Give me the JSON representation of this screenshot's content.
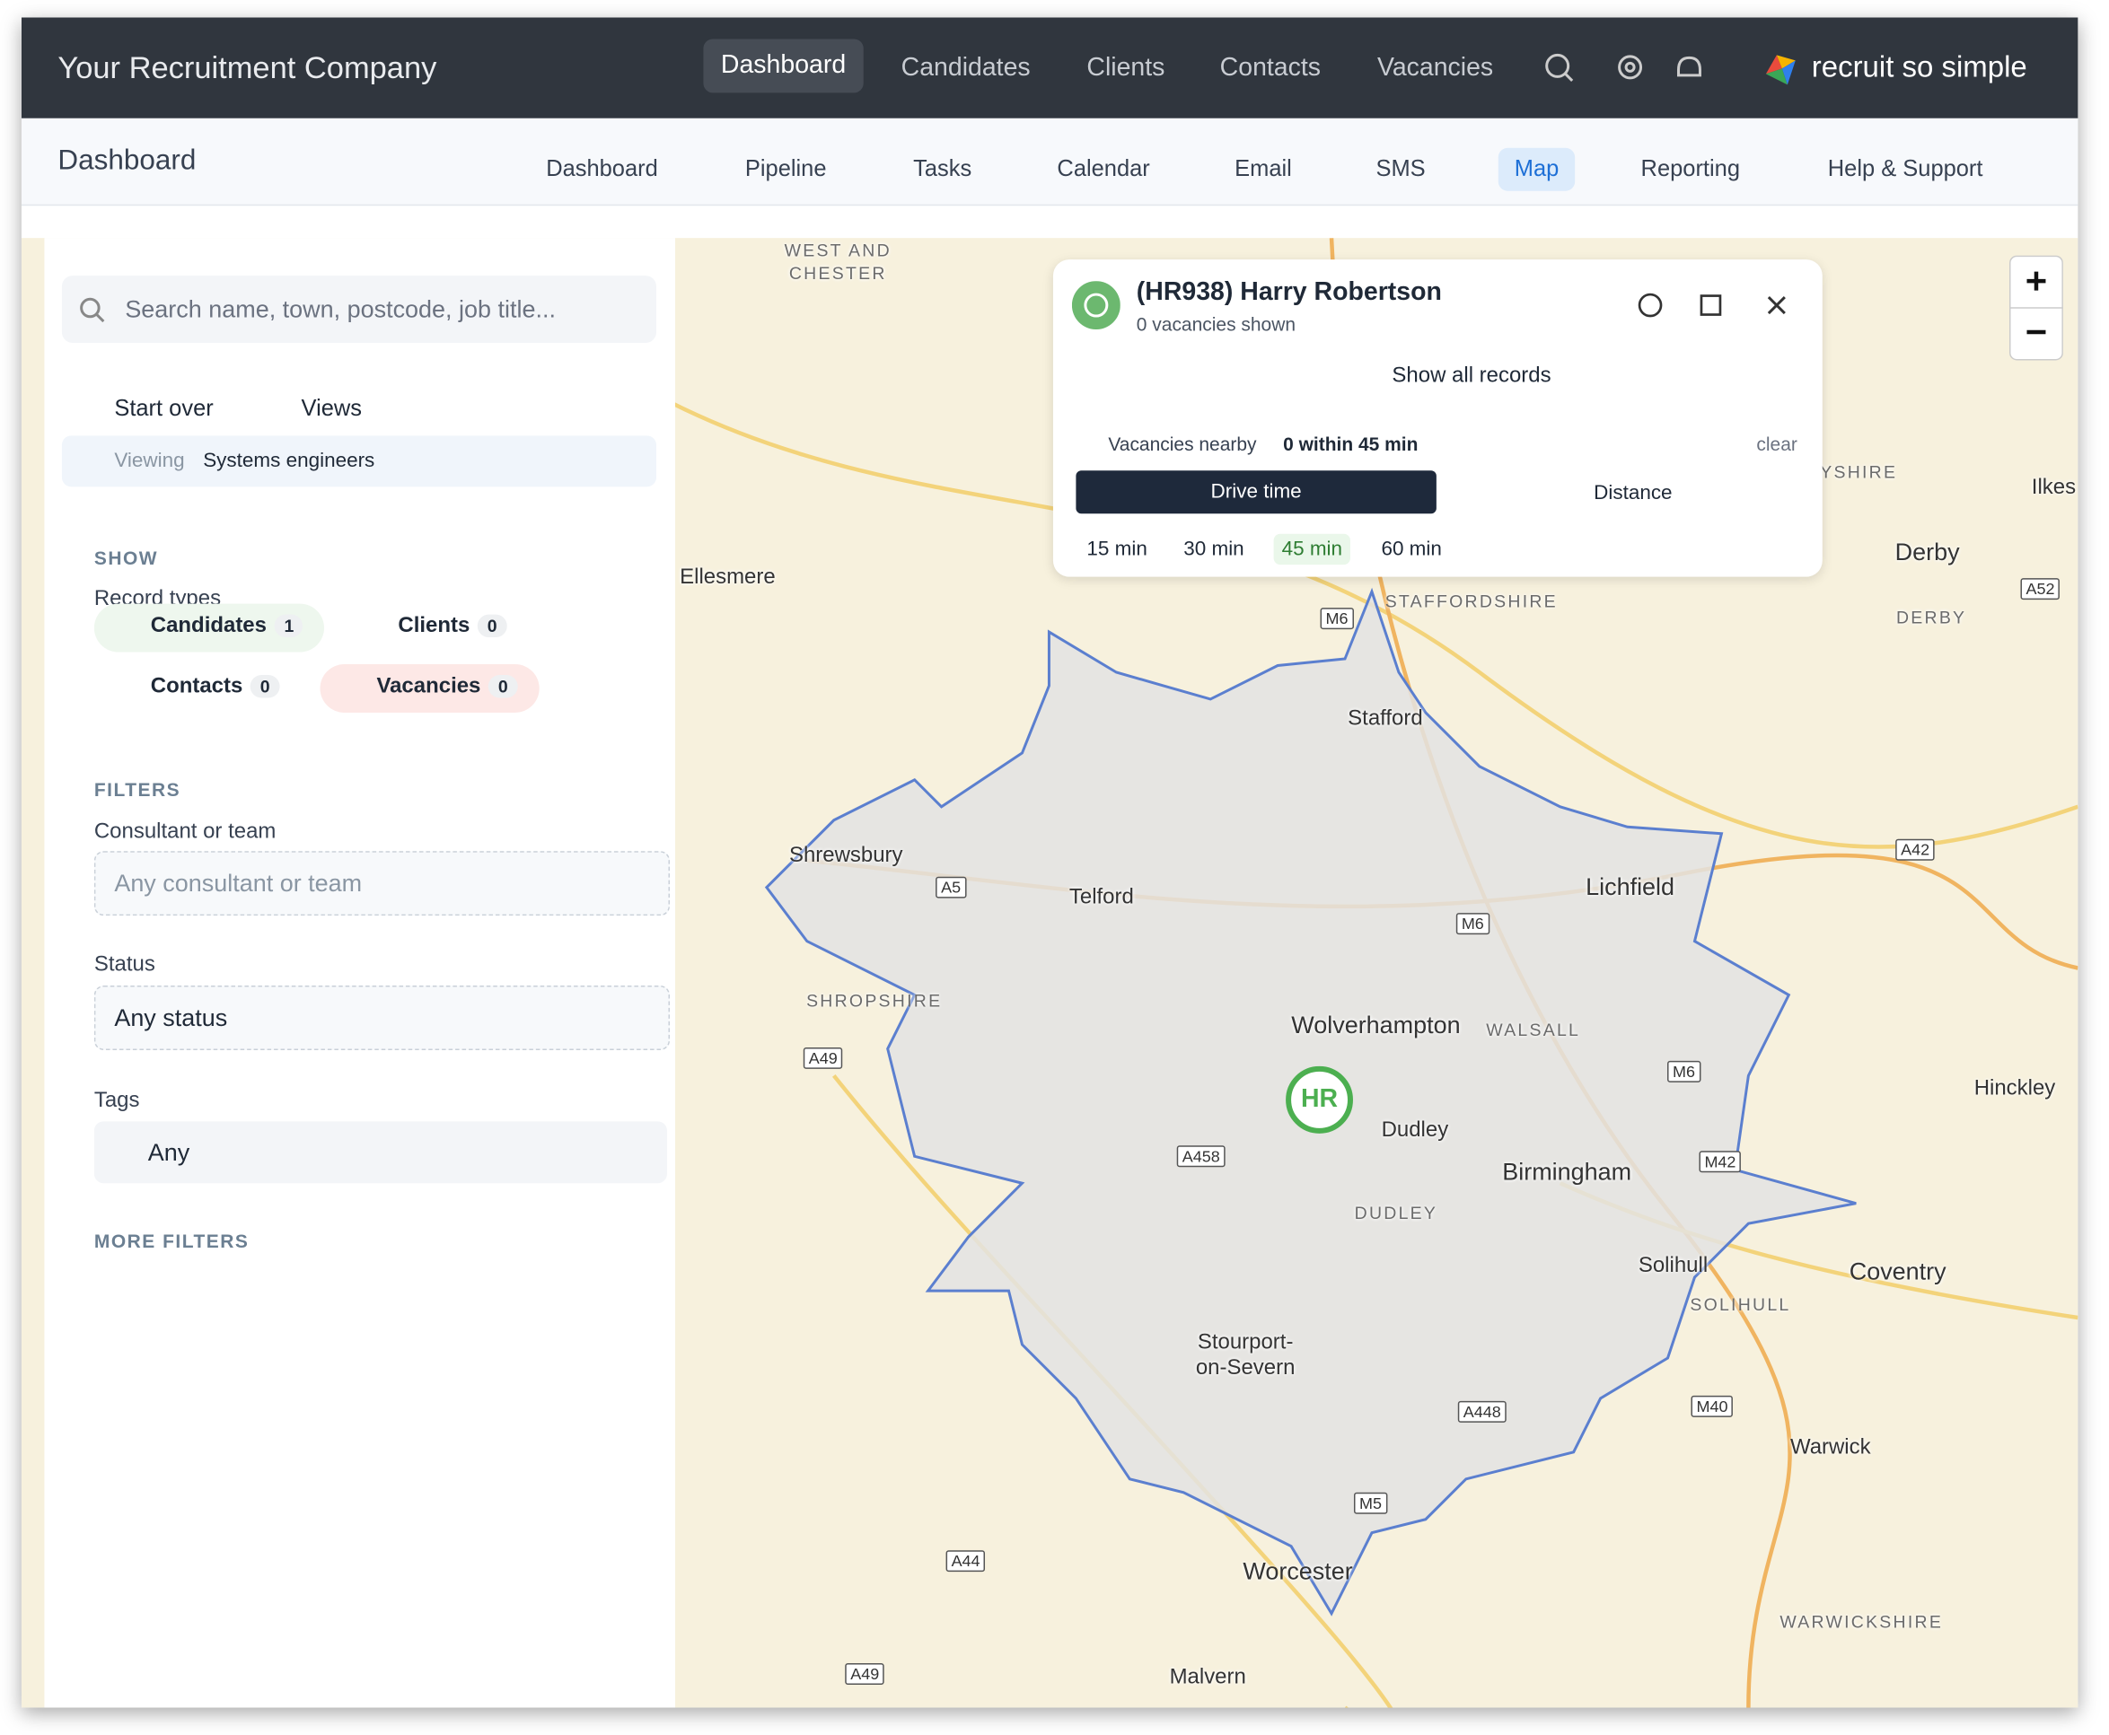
{
  "header": {
    "company": "Your Recruitment Company",
    "nav": [
      "Dashboard",
      "Candidates",
      "Clients",
      "Contacts",
      "Vacancies"
    ],
    "brand": "recruit so simple"
  },
  "subnav": {
    "title": "Dashboard",
    "items": [
      "Dashboard",
      "Pipeline",
      "Tasks",
      "Calendar",
      "Email",
      "SMS",
      "Map",
      "Reporting",
      "Help & Support"
    ]
  },
  "sidebar": {
    "search": "Search name, town, postcode, job title...",
    "start_over": "Start over",
    "views": "Views",
    "viewing_label": "Viewing",
    "viewing_value": "Systems engineers",
    "show_heading": "SHOW",
    "record_types_label": "Record types",
    "record_types": [
      {
        "name": "Candidates",
        "count": 1
      },
      {
        "name": "Clients",
        "count": 0
      },
      {
        "name": "Contacts",
        "count": 0
      },
      {
        "name": "Vacancies",
        "count": 0
      }
    ],
    "filters_heading": "FILTERS",
    "consultant_label": "Consultant or team",
    "consultant_value": "Any consultant or team",
    "status_label": "Status",
    "status_value": "Any status",
    "tags_label": "Tags",
    "tags_value": "Any",
    "more_filters": "MORE FILTERS"
  },
  "popup": {
    "title": "(HR938) Harry Robertson",
    "subtitle": "0 vacancies shown",
    "show_all": "Show all records",
    "nearby_label": "Vacancies nearby",
    "nearby_value": "0 within 45 min",
    "clear": "clear",
    "drive_time": "Drive time",
    "distance": "Distance",
    "times": [
      "15 min",
      "30 min",
      "45 min",
      "60 min"
    ]
  },
  "map": {
    "marker": "HR",
    "places": [
      "WEST AND",
      "CHESTER",
      "Ellesmere",
      "STAFFORDSHIRE",
      "Derby",
      "DERBY",
      "YSHIRE",
      "Ilkes",
      "Stafford",
      "Shrewsbury",
      "Telford",
      "Lichfield",
      "SHROPSHIRE",
      "Wolverhampton",
      "WALSALL",
      "Hinckley",
      "Dudley",
      "Birmingham",
      "DUDLEY",
      "Coventry",
      "Solihull",
      "SOLIHULL",
      "Stourport-",
      "on-Severn",
      "Warwick",
      "Worcester",
      "WARWICKSHIRE",
      "Malvern"
    ],
    "roads": [
      "M6",
      "A5",
      "M6",
      "A49",
      "M6",
      "A458",
      "M42",
      "A448",
      "M40",
      "M5",
      "A44",
      "A49",
      "A42",
      "A52"
    ]
  }
}
